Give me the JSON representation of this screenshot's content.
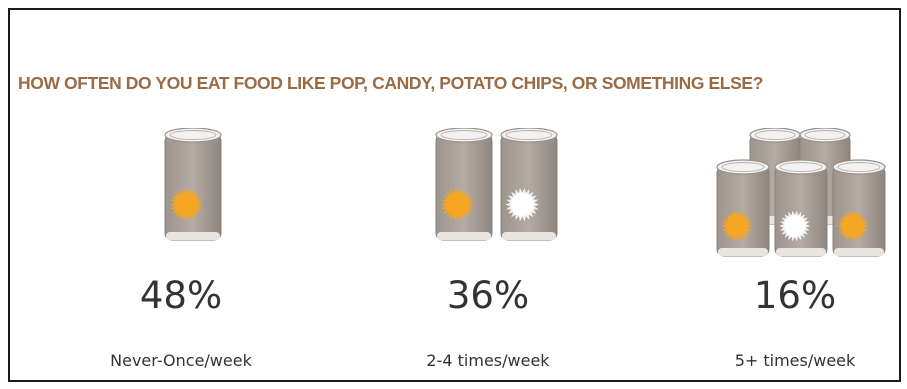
{
  "chart_data": {
    "type": "pictogram",
    "title": "HOW OFTEN DO YOU EAT FOOD LIKE POP, CANDY, POTATO CHIPS, OR SOMETHING ELSE?",
    "categories": [
      "Never-Once/week",
      "2-4 times/week",
      "5+ times/week"
    ],
    "values": [
      48,
      36,
      16
    ],
    "value_labels": [
      "48%",
      "36%",
      "16%"
    ],
    "unit": "%",
    "icon": "soda-can-icon"
  },
  "colors": {
    "title": "#9a6b45",
    "text": "#333333",
    "can_body": "#b4aca4",
    "fizz_orange": "#f5a623",
    "fizz_white": "#ffffff"
  }
}
